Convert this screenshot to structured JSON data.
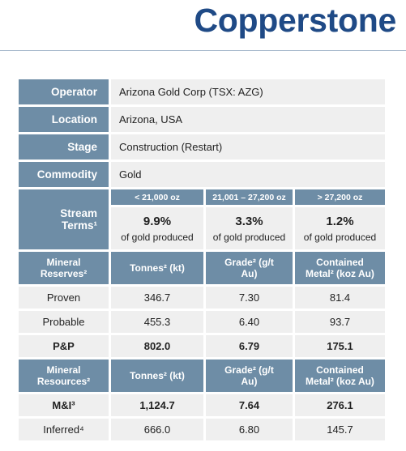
{
  "header": {
    "title": "Copperstone"
  },
  "overview": [
    {
      "label": "Operator",
      "value": "Arizona Gold Corp (TSX: AZG)"
    },
    {
      "label": "Location",
      "value": "Arizona, USA"
    },
    {
      "label": "Stage",
      "value": "Construction (Restart)"
    },
    {
      "label": "Commodity",
      "value": "Gold"
    }
  ],
  "stream": {
    "label": "Stream Terms¹",
    "tiers": [
      {
        "range": "< 21,000 oz",
        "rate": "9.9%",
        "note": "of gold produced"
      },
      {
        "range": "21,001 – 27,200 oz",
        "rate": "3.3%",
        "note": "of gold produced"
      },
      {
        "range": "> 27,200 oz",
        "rate": "1.2%",
        "note": "of gold produced"
      }
    ]
  },
  "reserves": {
    "label": "Mineral Reserves²",
    "columns": [
      "Tonnes² (kt)",
      "Grade² (g/t Au)",
      "Contained Metal² (koz Au)"
    ],
    "rows": [
      [
        "Proven",
        "346.7",
        "7.30",
        "81.4"
      ],
      [
        "Probable",
        "455.3",
        "6.40",
        "93.7"
      ],
      [
        "P&P",
        "802.0",
        "6.79",
        "175.1"
      ]
    ]
  },
  "resources": {
    "label": "Mineral Resources²",
    "columns": [
      "Tonnes² (kt)",
      "Grade² (g/t Au)",
      "Contained Metal² (koz Au)"
    ],
    "rows": [
      [
        "M&I³",
        "1,124.7",
        "7.64",
        "276.1"
      ],
      [
        "Inferred⁴",
        "666.0",
        "6.80",
        "145.7"
      ]
    ]
  }
}
